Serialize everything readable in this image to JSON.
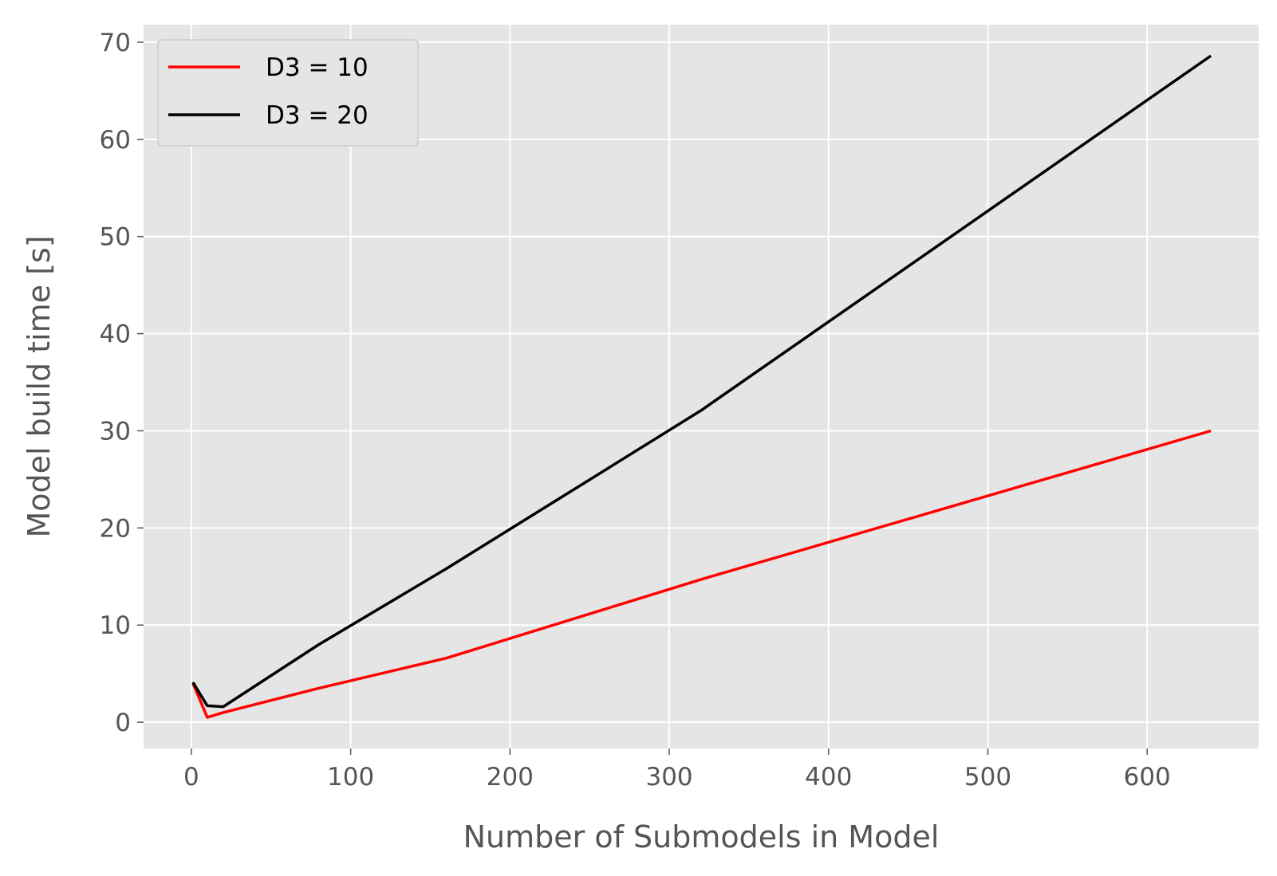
{
  "chart_data": {
    "type": "line",
    "xlabel": "Number of Submodels in Model",
    "ylabel": "Model build time [s]",
    "xlim": [
      -30,
      670
    ],
    "ylim": [
      -2.7,
      71.8
    ],
    "xticks": [
      0,
      100,
      200,
      300,
      400,
      500,
      600
    ],
    "yticks": [
      0,
      10,
      20,
      30,
      40,
      50,
      60,
      70
    ],
    "grid": true,
    "legend_position": "top-left",
    "series": [
      {
        "name": "D3 = 10",
        "color": "#ff0000",
        "x": [
          1,
          10,
          20,
          80,
          160,
          320,
          640
        ],
        "y": [
          4.0,
          0.5,
          1.0,
          3.5,
          6.6,
          14.7,
          30.0
        ]
      },
      {
        "name": "D3 = 20",
        "color": "#000000",
        "x": [
          1,
          10,
          20,
          80,
          160,
          320,
          640
        ],
        "y": [
          4.1,
          1.7,
          1.6,
          8.0,
          15.8,
          32.1,
          68.6
        ]
      }
    ]
  }
}
